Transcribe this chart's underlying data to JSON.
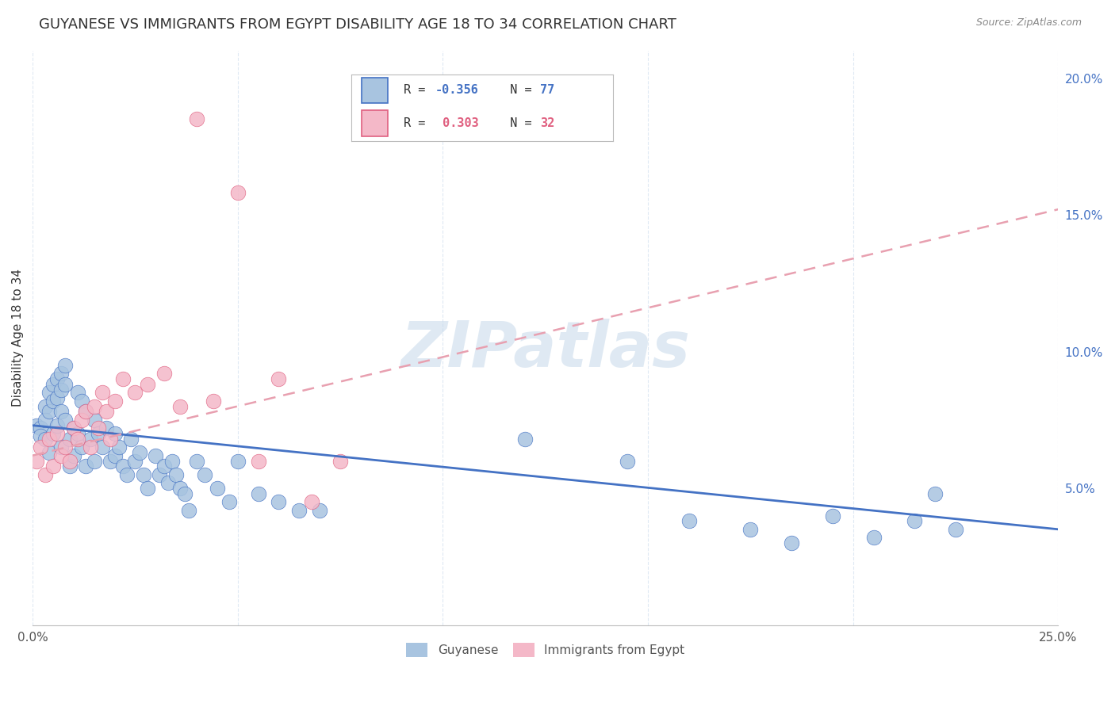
{
  "title": "GUYANESE VS IMMIGRANTS FROM EGYPT DISABILITY AGE 18 TO 34 CORRELATION CHART",
  "source": "Source: ZipAtlas.com",
  "ylabel": "Disability Age 18 to 34",
  "xlim": [
    0.0,
    0.25
  ],
  "ylim": [
    0.0,
    0.21
  ],
  "watermark": "ZIPatlas",
  "guyanese_color": "#a8c4e0",
  "egypt_color": "#f4b8c8",
  "line_guyanese_color": "#4472c4",
  "line_egypt_color": "#e8a0b0",
  "background_color": "#ffffff",
  "grid_color": "#d8e4f0",
  "title_fontsize": 13,
  "axis_fontsize": 11,
  "legend_fontsize": 11,
  "guyanese_x": [
    0.001,
    0.002,
    0.002,
    0.003,
    0.003,
    0.003,
    0.004,
    0.004,
    0.004,
    0.005,
    0.005,
    0.005,
    0.006,
    0.006,
    0.006,
    0.007,
    0.007,
    0.007,
    0.007,
    0.008,
    0.008,
    0.008,
    0.009,
    0.009,
    0.01,
    0.01,
    0.011,
    0.011,
    0.012,
    0.012,
    0.013,
    0.013,
    0.014,
    0.015,
    0.015,
    0.016,
    0.017,
    0.018,
    0.019,
    0.02,
    0.02,
    0.021,
    0.022,
    0.023,
    0.024,
    0.025,
    0.026,
    0.027,
    0.028,
    0.03,
    0.031,
    0.032,
    0.033,
    0.034,
    0.035,
    0.036,
    0.037,
    0.038,
    0.04,
    0.042,
    0.045,
    0.048,
    0.05,
    0.055,
    0.06,
    0.065,
    0.07,
    0.12,
    0.145,
    0.16,
    0.175,
    0.185,
    0.195,
    0.205,
    0.215,
    0.22,
    0.225
  ],
  "guyanese_y": [
    0.073,
    0.072,
    0.069,
    0.08,
    0.075,
    0.068,
    0.085,
    0.078,
    0.063,
    0.088,
    0.082,
    0.07,
    0.09,
    0.083,
    0.073,
    0.092,
    0.086,
    0.078,
    0.065,
    0.095,
    0.088,
    0.075,
    0.068,
    0.058,
    0.072,
    0.062,
    0.085,
    0.07,
    0.082,
    0.065,
    0.078,
    0.058,
    0.068,
    0.075,
    0.06,
    0.07,
    0.065,
    0.072,
    0.06,
    0.07,
    0.062,
    0.065,
    0.058,
    0.055,
    0.068,
    0.06,
    0.063,
    0.055,
    0.05,
    0.062,
    0.055,
    0.058,
    0.052,
    0.06,
    0.055,
    0.05,
    0.048,
    0.042,
    0.06,
    0.055,
    0.05,
    0.045,
    0.06,
    0.048,
    0.045,
    0.042,
    0.042,
    0.068,
    0.06,
    0.038,
    0.035,
    0.03,
    0.04,
    0.032,
    0.038,
    0.048,
    0.035
  ],
  "egypt_x": [
    0.001,
    0.002,
    0.003,
    0.004,
    0.005,
    0.006,
    0.007,
    0.008,
    0.009,
    0.01,
    0.011,
    0.012,
    0.013,
    0.014,
    0.015,
    0.016,
    0.017,
    0.018,
    0.019,
    0.02,
    0.022,
    0.025,
    0.028,
    0.032,
    0.036,
    0.04,
    0.044,
    0.05,
    0.055,
    0.06,
    0.068,
    0.075
  ],
  "egypt_y": [
    0.06,
    0.065,
    0.055,
    0.068,
    0.058,
    0.07,
    0.062,
    0.065,
    0.06,
    0.072,
    0.068,
    0.075,
    0.078,
    0.065,
    0.08,
    0.072,
    0.085,
    0.078,
    0.068,
    0.082,
    0.09,
    0.085,
    0.088,
    0.092,
    0.08,
    0.185,
    0.082,
    0.158,
    0.06,
    0.09,
    0.045,
    0.06
  ],
  "guyanese_line_x": [
    0.0,
    0.25
  ],
  "guyanese_line_y": [
    0.073,
    0.035
  ],
  "egypt_line_x": [
    0.0,
    0.25
  ],
  "egypt_line_y": [
    0.062,
    0.152
  ]
}
